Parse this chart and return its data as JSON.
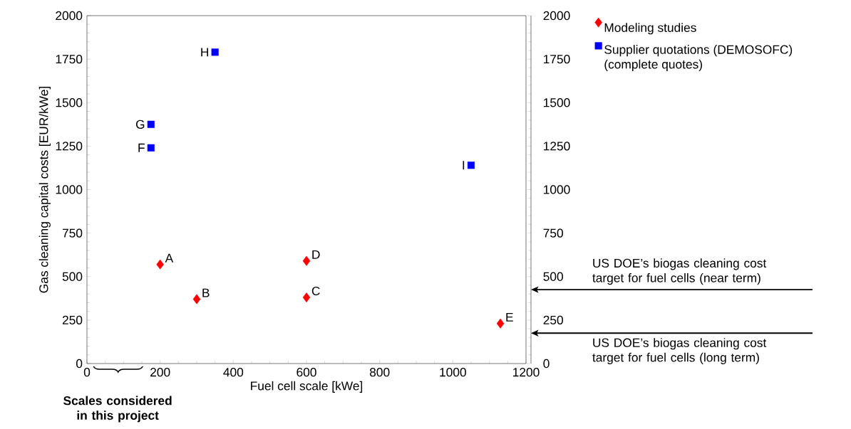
{
  "chart_data": {
    "type": "scatter",
    "xlabel": "Fuel cell scale [kWe]",
    "ylabel": "Gas cleaning capital costs [EUR/kWe]",
    "series": [
      {
        "name": "Modeling studies",
        "color": "#ff0000",
        "marker": "diamond",
        "x": [
          200,
          300,
          600,
          600,
          1130
        ],
        "values": [
          570,
          370,
          380,
          590,
          230
        ],
        "value_labels": [
          "A",
          "B",
          "C",
          "D",
          "E"
        ]
      },
      {
        "name": "Supplier quotations (DEMOSOFC) (complete quotes)",
        "color": "#0000ff",
        "marker": "square",
        "x": [
          175,
          175,
          350,
          1050
        ],
        "values": [
          1240,
          1375,
          1790,
          1140
        ],
        "value_labels": [
          "F",
          "G",
          "H",
          "I"
        ]
      }
    ],
    "xlim": [
      0,
      1200
    ],
    "xticks": [
      0,
      200,
      400,
      600,
      800,
      1000,
      1200
    ],
    "ylim": [
      0,
      2000
    ],
    "yticks": [
      0,
      250,
      500,
      750,
      1000,
      1250,
      1500,
      1750,
      2000
    ],
    "y2lim": [
      0,
      2000
    ],
    "y2ticks": [
      0,
      250,
      500,
      750,
      1000,
      1250,
      1500,
      1750,
      2000
    ],
    "legend": "top right",
    "ref_lines": [
      {
        "axis": "y2",
        "value": 425,
        "label": "US DOE’s biogas cleaning cost target for fuel cells (near term)"
      },
      {
        "axis": "y2",
        "value": 175,
        "label": "US DOE’s biogas cleaning cost target for fuel cells (long term)"
      }
    ],
    "annotations": [
      "Scales considered in this project"
    ]
  }
}
